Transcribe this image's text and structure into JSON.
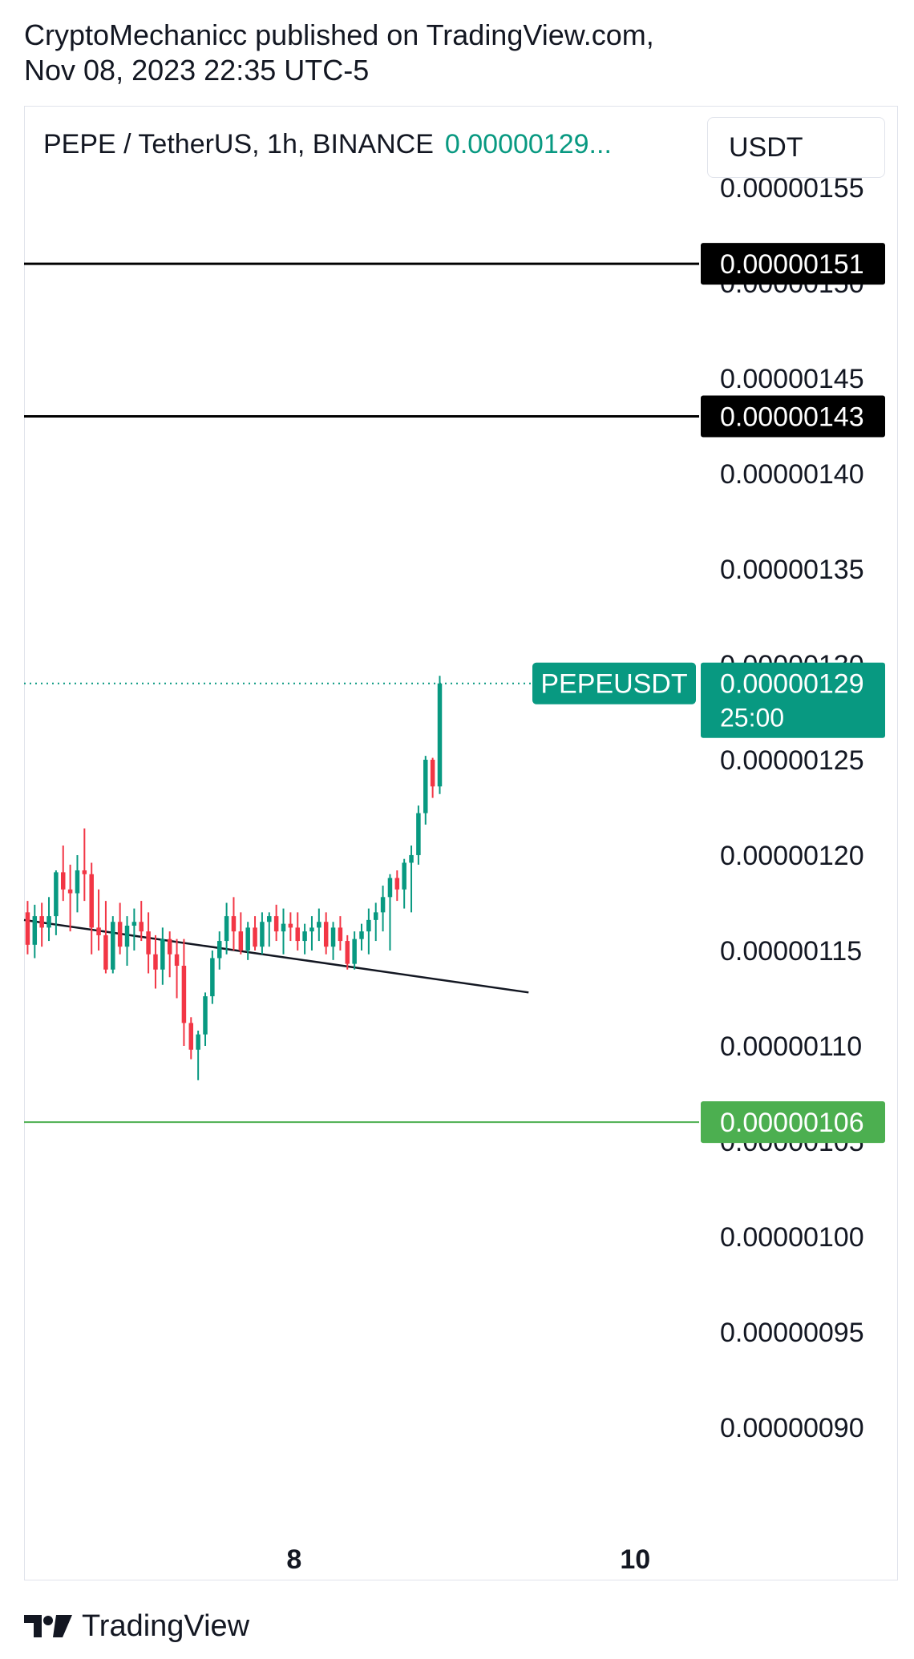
{
  "header": {
    "published_line": "CryptoMechanicc published on TradingView.com,",
    "date_line": "Nov 08, 2023 22:35 UTC-5"
  },
  "legend": {
    "symbol": "PEPE / TetherUS, 1h, BINANCE",
    "price": "0.00000129..."
  },
  "unit_button": {
    "label": "USDT"
  },
  "footer": {
    "brand": "TradingView"
  },
  "colors": {
    "up": "#089981",
    "down": "#f23645",
    "hline": "#000000",
    "support": "#4caf50",
    "trend": "#131722"
  },
  "chart_data": {
    "type": "candlestick",
    "y_range": [
      8.5e-07,
      1.555e-06
    ],
    "y_ticks": [
      "0.00000090",
      "0.00000095",
      "0.00000100",
      "0.00000105",
      "0.00000110",
      "0.00000115",
      "0.00000120",
      "0.00000125",
      "0.00000130",
      "0.00000135",
      "0.00000140",
      "0.00000145",
      "0.00000150",
      "0.00000155"
    ],
    "x_ticks": [
      {
        "label": "8",
        "x": 4.5
      },
      {
        "label": "10",
        "x": 52.5
      }
    ],
    "x_range": [
      -33.5,
      61.5
    ],
    "candles": [
      {
        "x": -33,
        "o": 1.17,
        "h": 1.176,
        "l": 1.148,
        "c": 1.153
      },
      {
        "x": -32,
        "o": 1.153,
        "h": 1.174,
        "l": 1.146,
        "c": 1.168
      },
      {
        "x": -31,
        "o": 1.168,
        "h": 1.175,
        "l": 1.152,
        "c": 1.162
      },
      {
        "x": -30,
        "o": 1.162,
        "h": 1.178,
        "l": 1.155,
        "c": 1.168
      },
      {
        "x": -29,
        "o": 1.168,
        "h": 1.192,
        "l": 1.158,
        "c": 1.191
      },
      {
        "x": -28,
        "o": 1.191,
        "h": 1.205,
        "l": 1.176,
        "c": 1.182
      },
      {
        "x": -27,
        "o": 1.182,
        "h": 1.195,
        "l": 1.16,
        "c": 1.18
      },
      {
        "x": -26,
        "o": 1.18,
        "h": 1.2,
        "l": 1.17,
        "c": 1.192
      },
      {
        "x": -25,
        "o": 1.192,
        "h": 1.214,
        "l": 1.176,
        "c": 1.19
      },
      {
        "x": -24,
        "o": 1.19,
        "h": 1.196,
        "l": 1.148,
        "c": 1.162
      },
      {
        "x": -23,
        "o": 1.162,
        "h": 1.182,
        "l": 1.15,
        "c": 1.158
      },
      {
        "x": -22,
        "o": 1.158,
        "h": 1.176,
        "l": 1.138,
        "c": 1.14
      },
      {
        "x": -21,
        "o": 1.14,
        "h": 1.168,
        "l": 1.138,
        "c": 1.165
      },
      {
        "x": -20,
        "o": 1.165,
        "h": 1.175,
        "l": 1.148,
        "c": 1.152
      },
      {
        "x": -19,
        "o": 1.152,
        "h": 1.168,
        "l": 1.142,
        "c": 1.163
      },
      {
        "x": -18,
        "o": 1.163,
        "h": 1.172,
        "l": 1.15,
        "c": 1.165
      },
      {
        "x": -17,
        "o": 1.165,
        "h": 1.176,
        "l": 1.155,
        "c": 1.16
      },
      {
        "x": -16,
        "o": 1.16,
        "h": 1.17,
        "l": 1.138,
        "c": 1.148
      },
      {
        "x": -15,
        "o": 1.148,
        "h": 1.158,
        "l": 1.13,
        "c": 1.14
      },
      {
        "x": -14,
        "o": 1.14,
        "h": 1.162,
        "l": 1.132,
        "c": 1.156
      },
      {
        "x": -13,
        "o": 1.156,
        "h": 1.16,
        "l": 1.136,
        "c": 1.148
      },
      {
        "x": -12,
        "o": 1.148,
        "h": 1.156,
        "l": 1.125,
        "c": 1.142
      },
      {
        "x": -11,
        "o": 1.142,
        "h": 1.156,
        "l": 1.1,
        "c": 1.112
      },
      {
        "x": -10,
        "o": 1.112,
        "h": 1.115,
        "l": 1.093,
        "c": 1.098
      },
      {
        "x": -9,
        "o": 1.098,
        "h": 1.108,
        "l": 1.082,
        "c": 1.106
      },
      {
        "x": -8,
        "o": 1.106,
        "h": 1.128,
        "l": 1.1,
        "c": 1.126
      },
      {
        "x": -7,
        "o": 1.126,
        "h": 1.15,
        "l": 1.122,
        "c": 1.146
      },
      {
        "x": -6,
        "o": 1.146,
        "h": 1.16,
        "l": 1.14,
        "c": 1.155
      },
      {
        "x": -5,
        "o": 1.155,
        "h": 1.175,
        "l": 1.148,
        "c": 1.168
      },
      {
        "x": -4,
        "o": 1.168,
        "h": 1.178,
        "l": 1.15,
        "c": 1.16
      },
      {
        "x": -3,
        "o": 1.16,
        "h": 1.17,
        "l": 1.148,
        "c": 1.15
      },
      {
        "x": -2,
        "o": 1.15,
        "h": 1.165,
        "l": 1.145,
        "c": 1.162
      },
      {
        "x": -1,
        "o": 1.162,
        "h": 1.168,
        "l": 1.15,
        "c": 1.152
      },
      {
        "x": 0,
        "o": 1.152,
        "h": 1.17,
        "l": 1.148,
        "c": 1.165
      },
      {
        "x": 1,
        "o": 1.165,
        "h": 1.17,
        "l": 1.152,
        "c": 1.168
      },
      {
        "x": 2,
        "o": 1.168,
        "h": 1.174,
        "l": 1.155,
        "c": 1.16
      },
      {
        "x": 3,
        "o": 1.16,
        "h": 1.172,
        "l": 1.148,
        "c": 1.164
      },
      {
        "x": 4,
        "o": 1.164,
        "h": 1.17,
        "l": 1.155,
        "c": 1.162
      },
      {
        "x": 5,
        "o": 1.162,
        "h": 1.17,
        "l": 1.15,
        "c": 1.155
      },
      {
        "x": 6,
        "o": 1.155,
        "h": 1.164,
        "l": 1.148,
        "c": 1.16
      },
      {
        "x": 7,
        "o": 1.16,
        "h": 1.168,
        "l": 1.15,
        "c": 1.162
      },
      {
        "x": 8,
        "o": 1.162,
        "h": 1.172,
        "l": 1.155,
        "c": 1.165
      },
      {
        "x": 9,
        "o": 1.165,
        "h": 1.17,
        "l": 1.148,
        "c": 1.152
      },
      {
        "x": 10,
        "o": 1.152,
        "h": 1.165,
        "l": 1.145,
        "c": 1.162
      },
      {
        "x": 11,
        "o": 1.162,
        "h": 1.168,
        "l": 1.15,
        "c": 1.155
      },
      {
        "x": 12,
        "o": 1.155,
        "h": 1.158,
        "l": 1.14,
        "c": 1.143
      },
      {
        "x": 13,
        "o": 1.143,
        "h": 1.16,
        "l": 1.14,
        "c": 1.156
      },
      {
        "x": 14,
        "o": 1.156,
        "h": 1.164,
        "l": 1.15,
        "c": 1.16
      },
      {
        "x": 15,
        "o": 1.16,
        "h": 1.172,
        "l": 1.148,
        "c": 1.166
      },
      {
        "x": 16,
        "o": 1.166,
        "h": 1.175,
        "l": 1.155,
        "c": 1.17
      },
      {
        "x": 17,
        "o": 1.17,
        "h": 1.184,
        "l": 1.16,
        "c": 1.178
      },
      {
        "x": 18,
        "o": 1.178,
        "h": 1.19,
        "l": 1.15,
        "c": 1.188
      },
      {
        "x": 19,
        "o": 1.188,
        "h": 1.192,
        "l": 1.176,
        "c": 1.182
      },
      {
        "x": 20,
        "o": 1.182,
        "h": 1.198,
        "l": 1.172,
        "c": 1.196
      },
      {
        "x": 21,
        "o": 1.196,
        "h": 1.205,
        "l": 1.17,
        "c": 1.2
      },
      {
        "x": 22,
        "o": 1.2,
        "h": 1.226,
        "l": 1.195,
        "c": 1.222
      },
      {
        "x": 23,
        "o": 1.222,
        "h": 1.252,
        "l": 1.216,
        "c": 1.25
      },
      {
        "x": 24,
        "o": 1.25,
        "h": 1.251,
        "l": 1.23,
        "c": 1.236
      },
      {
        "x": 25,
        "o": 1.236,
        "h": 1.294,
        "l": 1.232,
        "c": 1.29
      }
    ],
    "horizontal_lines": [
      {
        "value": 1.51,
        "label": "0.00000151",
        "style": "hline"
      },
      {
        "value": 1.43,
        "label": "0.00000143",
        "style": "hline"
      },
      {
        "value": 1.06,
        "label": "0.00000106",
        "style": "support"
      }
    ],
    "trendline": {
      "x1": -33.5,
      "y1": 1.166,
      "x2": 37.5,
      "y2": 1.128
    },
    "last_price": {
      "value": 1.29,
      "label": "0.00000129",
      "symbol": "PEPEUSDT",
      "countdown": "25:00"
    }
  }
}
